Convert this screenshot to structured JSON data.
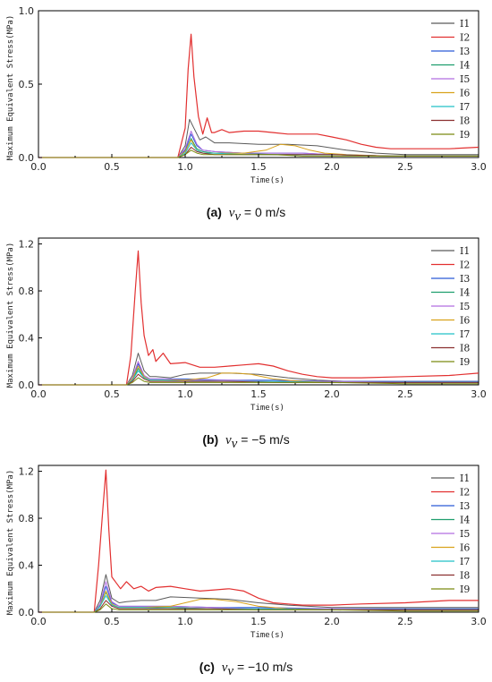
{
  "legend_colors": [
    "#5a5a5a",
    "#e23030",
    "#2a5bd7",
    "#1f9e6e",
    "#b26ee0",
    "#d9a21b",
    "#20c0c8",
    "#8b3030",
    "#7a8a10"
  ],
  "chart_data": [
    {
      "type": "line",
      "xlabel": "Time(s)",
      "ylabel": "Maximum Equivalent Stress(MPa)",
      "xlim": [
        0,
        3
      ],
      "ylim": [
        0,
        1.0
      ],
      "xticks": [
        "0.0",
        "0.5",
        "1.0",
        "1.5",
        "2.0",
        "2.5",
        "3.0"
      ],
      "yticks": [
        "0.0",
        "0.5",
        "1.0"
      ],
      "ytick_values": [
        0,
        0.5,
        1.0
      ],
      "legend": "top-right",
      "grid": false,
      "caption": {
        "label": "(a)",
        "var": "v",
        "sub": "v",
        "text": "= 0 m/s"
      },
      "series": [
        {
          "name": "I1",
          "x": [
            0,
            0.95,
            1.0,
            1.03,
            1.06,
            1.1,
            1.14,
            1.2,
            1.3,
            1.5,
            1.7,
            1.9,
            2.1,
            2.3,
            2.5,
            2.8,
            3.0
          ],
          "y": [
            0,
            0,
            0.08,
            0.26,
            0.2,
            0.12,
            0.14,
            0.1,
            0.1,
            0.09,
            0.09,
            0.08,
            0.05,
            0.03,
            0.02,
            0.02,
            0.02
          ]
        },
        {
          "name": "I2",
          "x": [
            0,
            0.95,
            1.0,
            1.02,
            1.04,
            1.06,
            1.09,
            1.12,
            1.15,
            1.18,
            1.2,
            1.25,
            1.3,
            1.4,
            1.5,
            1.6,
            1.7,
            1.8,
            1.9,
            2.0,
            2.1,
            2.2,
            2.3,
            2.4,
            2.6,
            2.8,
            3.0
          ],
          "y": [
            0,
            0,
            0.2,
            0.6,
            0.84,
            0.55,
            0.28,
            0.16,
            0.27,
            0.17,
            0.17,
            0.19,
            0.17,
            0.18,
            0.18,
            0.17,
            0.16,
            0.16,
            0.16,
            0.14,
            0.12,
            0.09,
            0.07,
            0.06,
            0.06,
            0.06,
            0.07
          ]
        },
        {
          "name": "I3",
          "x": [
            0,
            0.95,
            1.0,
            1.04,
            1.08,
            1.12,
            1.2,
            1.4,
            1.6,
            1.8,
            2.0,
            2.4,
            3.0
          ],
          "y": [
            0,
            0,
            0.05,
            0.16,
            0.08,
            0.05,
            0.04,
            0.03,
            0.03,
            0.03,
            0.02,
            0.01,
            0.01
          ]
        },
        {
          "name": "I4",
          "x": [
            0,
            0.95,
            1.0,
            1.04,
            1.08,
            1.12,
            1.2,
            1.4,
            1.6,
            1.8,
            2.0,
            2.4,
            3.0
          ],
          "y": [
            0,
            0,
            0.04,
            0.13,
            0.06,
            0.04,
            0.03,
            0.03,
            0.02,
            0.02,
            0.02,
            0.01,
            0.01
          ]
        },
        {
          "name": "I5",
          "x": [
            0,
            0.95,
            1.0,
            1.04,
            1.08,
            1.12,
            1.2,
            1.4,
            1.6,
            1.8,
            2.0,
            2.4,
            3.0
          ],
          "y": [
            0,
            0,
            0.06,
            0.18,
            0.09,
            0.05,
            0.04,
            0.03,
            0.03,
            0.03,
            0.02,
            0.01,
            0.01
          ]
        },
        {
          "name": "I6",
          "x": [
            0,
            0.95,
            1.0,
            1.04,
            1.08,
            1.12,
            1.2,
            1.4,
            1.55,
            1.65,
            1.75,
            1.85,
            1.95,
            2.1,
            2.4,
            3.0
          ],
          "y": [
            0,
            0,
            0.04,
            0.12,
            0.05,
            0.03,
            0.03,
            0.03,
            0.05,
            0.09,
            0.08,
            0.05,
            0.03,
            0.02,
            0.01,
            0.01
          ]
        },
        {
          "name": "I7",
          "x": [
            0,
            0.95,
            1.0,
            1.04,
            1.08,
            1.12,
            1.2,
            1.4,
            1.6,
            1.8,
            2.0,
            2.4,
            3.0
          ],
          "y": [
            0,
            0,
            0.03,
            0.1,
            0.05,
            0.03,
            0.03,
            0.02,
            0.02,
            0.02,
            0.02,
            0.01,
            0.01
          ]
        },
        {
          "name": "I8",
          "x": [
            0,
            0.95,
            1.0,
            1.04,
            1.08,
            1.12,
            1.2,
            1.4,
            1.6,
            1.8,
            2.0,
            2.4,
            3.0
          ],
          "y": [
            0,
            0,
            0.02,
            0.07,
            0.04,
            0.03,
            0.02,
            0.02,
            0.02,
            0.02,
            0.02,
            0.01,
            0.01
          ]
        },
        {
          "name": "I9",
          "x": [
            0,
            0.95,
            1.0,
            1.04,
            1.08,
            1.12,
            1.2,
            1.4,
            1.6,
            1.8,
            2.0,
            2.4,
            3.0
          ],
          "y": [
            0,
            0,
            0.02,
            0.05,
            0.03,
            0.02,
            0.02,
            0.02,
            0.02,
            0.01,
            0.01,
            0.01,
            0.01
          ]
        }
      ]
    },
    {
      "type": "line",
      "xlabel": "Time(s)",
      "ylabel": "Maximum Equivalent Stress(MPa)",
      "xlim": [
        0,
        3
      ],
      "ylim": [
        0,
        1.25
      ],
      "xticks": [
        "0.0",
        "0.5",
        "1.0",
        "1.5",
        "2.0",
        "2.5",
        "3.0"
      ],
      "yticks": [
        "0.0",
        "0.4",
        "0.8",
        "1.2"
      ],
      "ytick_values": [
        0,
        0.4,
        0.8,
        1.2
      ],
      "legend": "top-right",
      "grid": false,
      "caption": {
        "label": "(b)",
        "var": "v",
        "sub": "v",
        "text": "= −5 m/s"
      },
      "series": [
        {
          "name": "I1",
          "x": [
            0,
            0.6,
            0.64,
            0.68,
            0.72,
            0.76,
            0.8,
            0.9,
            1.0,
            1.1,
            1.3,
            1.5,
            1.7,
            1.9,
            2.1,
            2.5,
            3.0
          ],
          "y": [
            0,
            0,
            0.08,
            0.27,
            0.12,
            0.07,
            0.07,
            0.06,
            0.09,
            0.1,
            0.1,
            0.09,
            0.06,
            0.04,
            0.03,
            0.03,
            0.03
          ]
        },
        {
          "name": "I2",
          "x": [
            0,
            0.6,
            0.63,
            0.66,
            0.68,
            0.7,
            0.72,
            0.75,
            0.78,
            0.8,
            0.85,
            0.9,
            1.0,
            1.1,
            1.2,
            1.3,
            1.4,
            1.5,
            1.6,
            1.7,
            1.8,
            1.9,
            2.0,
            2.2,
            2.5,
            2.8,
            3.0
          ],
          "y": [
            0,
            0,
            0.25,
            0.8,
            1.14,
            0.7,
            0.42,
            0.25,
            0.3,
            0.2,
            0.27,
            0.18,
            0.19,
            0.15,
            0.15,
            0.16,
            0.17,
            0.18,
            0.16,
            0.12,
            0.09,
            0.07,
            0.06,
            0.06,
            0.07,
            0.08,
            0.1
          ]
        },
        {
          "name": "I3",
          "x": [
            0,
            0.6,
            0.64,
            0.68,
            0.72,
            0.76,
            0.85,
            1.0,
            1.3,
            1.6,
            2.0,
            2.5,
            3.0
          ],
          "y": [
            0,
            0,
            0.05,
            0.18,
            0.08,
            0.05,
            0.05,
            0.05,
            0.04,
            0.04,
            0.03,
            0.03,
            0.03
          ]
        },
        {
          "name": "I4",
          "x": [
            0,
            0.6,
            0.64,
            0.68,
            0.72,
            0.76,
            0.85,
            1.0,
            1.3,
            1.6,
            2.0,
            2.5,
            3.0
          ],
          "y": [
            0,
            0,
            0.04,
            0.14,
            0.06,
            0.04,
            0.04,
            0.04,
            0.03,
            0.03,
            0.02,
            0.02,
            0.02
          ]
        },
        {
          "name": "I5",
          "x": [
            0,
            0.6,
            0.64,
            0.68,
            0.72,
            0.76,
            0.85,
            1.0,
            1.3,
            1.6,
            2.0,
            2.5,
            3.0
          ],
          "y": [
            0,
            0,
            0.06,
            0.2,
            0.08,
            0.05,
            0.05,
            0.04,
            0.04,
            0.03,
            0.03,
            0.02,
            0.02
          ]
        },
        {
          "name": "I6",
          "x": [
            0,
            0.6,
            0.64,
            0.68,
            0.72,
            0.76,
            0.85,
            1.0,
            1.15,
            1.25,
            1.35,
            1.45,
            1.6,
            1.8,
            2.0,
            2.5,
            3.0
          ],
          "y": [
            0,
            0,
            0.05,
            0.16,
            0.07,
            0.04,
            0.04,
            0.04,
            0.06,
            0.1,
            0.1,
            0.09,
            0.05,
            0.03,
            0.02,
            0.02,
            0.02
          ]
        },
        {
          "name": "I7",
          "x": [
            0,
            0.6,
            0.64,
            0.68,
            0.72,
            0.76,
            0.85,
            1.0,
            1.3,
            1.6,
            2.0,
            2.5,
            3.0
          ],
          "y": [
            0,
            0,
            0.04,
            0.12,
            0.06,
            0.04,
            0.04,
            0.03,
            0.03,
            0.03,
            0.02,
            0.02,
            0.02
          ]
        },
        {
          "name": "I8",
          "x": [
            0,
            0.6,
            0.64,
            0.68,
            0.72,
            0.76,
            0.85,
            1.0,
            1.3,
            1.6,
            2.0,
            2.5,
            3.0
          ],
          "y": [
            0,
            0,
            0.03,
            0.09,
            0.05,
            0.03,
            0.03,
            0.03,
            0.03,
            0.02,
            0.02,
            0.02,
            0.02
          ]
        },
        {
          "name": "I9",
          "x": [
            0,
            0.6,
            0.64,
            0.68,
            0.72,
            0.76,
            0.85,
            1.0,
            1.3,
            1.6,
            2.0,
            2.5,
            3.0
          ],
          "y": [
            0,
            0,
            0.02,
            0.06,
            0.03,
            0.02,
            0.02,
            0.02,
            0.02,
            0.02,
            0.02,
            0.01,
            0.01
          ]
        }
      ]
    },
    {
      "type": "line",
      "xlabel": "Time(s)",
      "ylabel": "Maximum Equivalent Stress(MPa)",
      "xlim": [
        0,
        3
      ],
      "ylim": [
        0,
        1.25
      ],
      "xticks": [
        "0.0",
        "0.5",
        "1.0",
        "1.5",
        "2.0",
        "2.5",
        "3.0"
      ],
      "yticks": [
        "0.0",
        "0.4",
        "0.8",
        "1.2"
      ],
      "ytick_values": [
        0,
        0.4,
        0.8,
        1.2
      ],
      "legend": "top-right",
      "grid": false,
      "caption": {
        "label": "(c)",
        "var": "v",
        "sub": "v",
        "text": "= −10 m/s"
      },
      "series": [
        {
          "name": "I1",
          "x": [
            0,
            0.38,
            0.42,
            0.46,
            0.5,
            0.55,
            0.6,
            0.7,
            0.8,
            0.9,
            1.1,
            1.3,
            1.5,
            1.7,
            2.0,
            2.5,
            3.0
          ],
          "y": [
            0,
            0,
            0.1,
            0.32,
            0.12,
            0.08,
            0.09,
            0.1,
            0.1,
            0.13,
            0.12,
            0.11,
            0.08,
            0.06,
            0.04,
            0.04,
            0.04
          ]
        },
        {
          "name": "I2",
          "x": [
            0,
            0.38,
            0.41,
            0.44,
            0.46,
            0.48,
            0.5,
            0.53,
            0.56,
            0.6,
            0.65,
            0.7,
            0.75,
            0.8,
            0.9,
            1.0,
            1.1,
            1.2,
            1.3,
            1.4,
            1.5,
            1.6,
            1.7,
            1.8,
            2.0,
            2.2,
            2.5,
            2.8,
            3.0
          ],
          "y": [
            0,
            0,
            0.4,
            0.9,
            1.21,
            0.7,
            0.3,
            0.25,
            0.2,
            0.26,
            0.2,
            0.22,
            0.18,
            0.21,
            0.22,
            0.2,
            0.18,
            0.19,
            0.2,
            0.18,
            0.12,
            0.08,
            0.07,
            0.06,
            0.06,
            0.07,
            0.08,
            0.1,
            0.1
          ]
        },
        {
          "name": "I3",
          "x": [
            0,
            0.38,
            0.42,
            0.46,
            0.5,
            0.55,
            0.7,
            0.9,
            1.2,
            1.5,
            2.0,
            2.5,
            3.0
          ],
          "y": [
            0,
            0,
            0.06,
            0.22,
            0.08,
            0.05,
            0.05,
            0.05,
            0.04,
            0.04,
            0.03,
            0.03,
            0.03
          ]
        },
        {
          "name": "I4",
          "x": [
            0,
            0.38,
            0.42,
            0.46,
            0.5,
            0.55,
            0.7,
            0.9,
            1.2,
            1.5,
            2.0,
            2.5,
            3.0
          ],
          "y": [
            0,
            0,
            0.05,
            0.17,
            0.06,
            0.04,
            0.04,
            0.04,
            0.03,
            0.03,
            0.02,
            0.02,
            0.02
          ]
        },
        {
          "name": "I5",
          "x": [
            0,
            0.38,
            0.42,
            0.46,
            0.5,
            0.55,
            0.7,
            0.9,
            1.2,
            1.5,
            2.0,
            2.5,
            3.0
          ],
          "y": [
            0,
            0,
            0.07,
            0.26,
            0.09,
            0.05,
            0.05,
            0.05,
            0.04,
            0.03,
            0.03,
            0.02,
            0.02
          ]
        },
        {
          "name": "I6",
          "x": [
            0,
            0.38,
            0.42,
            0.46,
            0.5,
            0.55,
            0.7,
            0.9,
            1.0,
            1.1,
            1.2,
            1.35,
            1.5,
            1.7,
            2.0,
            2.5,
            3.0
          ],
          "y": [
            0,
            0,
            0.05,
            0.18,
            0.07,
            0.04,
            0.04,
            0.05,
            0.08,
            0.11,
            0.11,
            0.09,
            0.05,
            0.03,
            0.02,
            0.02,
            0.02
          ]
        },
        {
          "name": "I7",
          "x": [
            0,
            0.38,
            0.42,
            0.46,
            0.5,
            0.55,
            0.7,
            0.9,
            1.2,
            1.5,
            2.0,
            2.5,
            3.0
          ],
          "y": [
            0,
            0,
            0.05,
            0.14,
            0.06,
            0.04,
            0.04,
            0.03,
            0.03,
            0.03,
            0.02,
            0.02,
            0.02
          ]
        },
        {
          "name": "I8",
          "x": [
            0,
            0.38,
            0.42,
            0.46,
            0.5,
            0.55,
            0.7,
            0.9,
            1.2,
            1.5,
            2.0,
            2.5,
            3.0
          ],
          "y": [
            0,
            0,
            0.03,
            0.1,
            0.05,
            0.03,
            0.03,
            0.03,
            0.03,
            0.02,
            0.02,
            0.02,
            0.02
          ]
        },
        {
          "name": "I9",
          "x": [
            0,
            0.38,
            0.42,
            0.46,
            0.5,
            0.55,
            0.7,
            0.9,
            1.2,
            1.5,
            2.0,
            2.5,
            3.0
          ],
          "y": [
            0,
            0,
            0.02,
            0.07,
            0.03,
            0.02,
            0.02,
            0.02,
            0.02,
            0.02,
            0.02,
            0.01,
            0.01
          ]
        }
      ]
    }
  ]
}
